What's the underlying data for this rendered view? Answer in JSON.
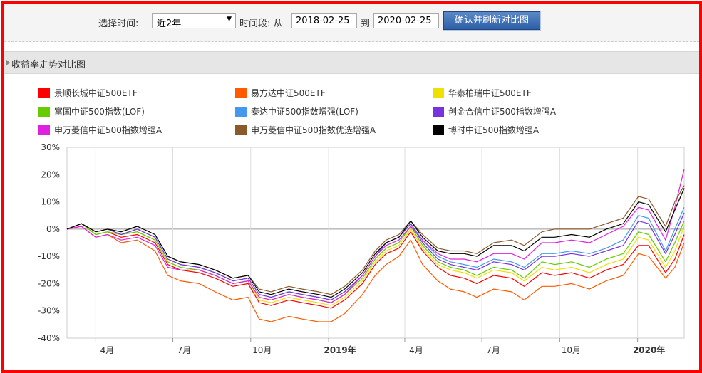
{
  "toolbar": {
    "period_label": "选择时间:",
    "period_value": "近2年",
    "range_label": "时间段: 从",
    "start_date": "2018-02-25",
    "to_label": "到",
    "end_date": "2020-02-25",
    "confirm_button": "确认并刷新对比图"
  },
  "section_title": "收益率走势对比图",
  "colors": {
    "frame": "#ff0000",
    "button": "#2c5fa7"
  },
  "chart_data": {
    "type": "line",
    "ylabel": "",
    "yticks": [
      "30%",
      "20%",
      "10%",
      "0%",
      "-10%",
      "-20%",
      "-30%",
      "-40%"
    ],
    "ylim": [
      -40,
      30
    ],
    "xticks": [
      "4月",
      "7月",
      "10月",
      "2019年",
      "4月",
      "7月",
      "10月",
      "2020年"
    ],
    "xtick_bold": [
      false,
      false,
      false,
      true,
      false,
      false,
      false,
      true
    ],
    "x_dates": [
      "2018-02-26",
      "2018-03-15",
      "2018-04-01",
      "2018-04-15",
      "2018-05-01",
      "2018-05-20",
      "2018-06-10",
      "2018-06-25",
      "2018-07-10",
      "2018-08-01",
      "2018-08-20",
      "2018-09-10",
      "2018-09-28",
      "2018-10-11",
      "2018-10-25",
      "2018-11-15",
      "2018-12-01",
      "2018-12-20",
      "2019-01-04",
      "2019-01-20",
      "2019-02-10",
      "2019-02-25",
      "2019-03-10",
      "2019-03-25",
      "2019-04-08",
      "2019-04-22",
      "2019-05-10",
      "2019-05-25",
      "2019-06-10",
      "2019-06-25",
      "2019-07-15",
      "2019-08-05",
      "2019-08-20",
      "2019-09-10",
      "2019-09-25",
      "2019-10-15",
      "2019-11-05",
      "2019-11-25",
      "2019-12-15",
      "2020-01-02",
      "2020-01-14",
      "2020-02-03",
      "2020-02-14",
      "2020-02-25"
    ],
    "series": [
      {
        "name": "景顺长城中证500ETF",
        "color": "#ff0000",
        "values": [
          0,
          2,
          -2,
          -1,
          -3,
          -2,
          -5,
          -13,
          -15,
          -16,
          -18,
          -21,
          -20,
          -27,
          -28,
          -26,
          -27,
          -28,
          -29,
          -26,
          -20,
          -13,
          -9,
          -7,
          -1,
          -8,
          -14,
          -17,
          -18,
          -20,
          -17,
          -18,
          -21,
          -16,
          -17,
          -16,
          -18,
          -15,
          -13,
          -6,
          -6,
          -16,
          -11,
          -2
        ]
      },
      {
        "name": "易方达中证500ETF",
        "color": "#ff5a00",
        "values": [
          0,
          1,
          -3,
          -2,
          -5,
          -4,
          -8,
          -17,
          -19,
          -20,
          -23,
          -26,
          -25,
          -33,
          -34,
          -32,
          -33,
          -34,
          -34,
          -31,
          -24,
          -17,
          -13,
          -10,
          -4,
          -13,
          -19,
          -22,
          -23,
          -25,
          -22,
          -23,
          -26,
          -21,
          -21,
          -20,
          -22,
          -19,
          -17,
          -9,
          -10,
          -18,
          -14,
          -5
        ]
      },
      {
        "name": "华泰柏瑞中证500ETF",
        "color": "#f0e000",
        "values": [
          0,
          2,
          -2,
          -1,
          -2,
          -1,
          -4,
          -12,
          -14,
          -15,
          -17,
          -20,
          -19,
          -26,
          -27,
          -25,
          -26,
          -27,
          -28,
          -25,
          -19,
          -12,
          -8,
          -6,
          0,
          -7,
          -13,
          -15,
          -16,
          -18,
          -15,
          -16,
          -19,
          -14,
          -15,
          -14,
          -16,
          -13,
          -11,
          -3,
          -4,
          -14,
          -8,
          1
        ]
      },
      {
        "name": "富国中证500指数(LOF)",
        "color": "#66cc00",
        "values": [
          0,
          2,
          -2,
          -1,
          -2,
          -1,
          -4,
          -12,
          -14,
          -15,
          -17,
          -20,
          -19,
          -25,
          -26,
          -24,
          -25,
          -26,
          -27,
          -24,
          -18,
          -11,
          -7,
          -5,
          1,
          -6,
          -12,
          -14,
          -15,
          -17,
          -14,
          -15,
          -18,
          -12,
          -13,
          -12,
          -14,
          -11,
          -9,
          -1,
          -2,
          -12,
          -5,
          3
        ]
      },
      {
        "name": "泰达中证500指数增强(LOF)",
        "color": "#4499ee",
        "values": [
          0,
          2,
          -1,
          0,
          -2,
          0,
          -3,
          -11,
          -13,
          -14,
          -16,
          -19,
          -18,
          -24,
          -25,
          -23,
          -24,
          -25,
          -26,
          -23,
          -17,
          -10,
          -5,
          -3,
          2,
          -4,
          -10,
          -12,
          -13,
          -14,
          -11,
          -12,
          -14,
          -9,
          -9,
          -8,
          -9,
          -7,
          -4,
          5,
          4,
          -8,
          0,
          8
        ]
      },
      {
        "name": "创金合信中证500指数增强A",
        "color": "#7733dd",
        "values": [
          0,
          2,
          -1,
          0,
          -2,
          0,
          -3,
          -11,
          -13,
          -14,
          -16,
          -19,
          -18,
          -24,
          -25,
          -23,
          -24,
          -25,
          -26,
          -23,
          -17,
          -10,
          -5,
          -3,
          2,
          -5,
          -11,
          -13,
          -14,
          -15,
          -12,
          -13,
          -15,
          -10,
          -10,
          -9,
          -10,
          -8,
          -6,
          3,
          2,
          -9,
          -2,
          6
        ]
      },
      {
        "name": "申万菱信中证500指数增强A",
        "color": "#e020e0",
        "values": [
          0,
          1,
          -3,
          -2,
          -4,
          -3,
          -6,
          -14,
          -15,
          -15,
          -17,
          -20,
          -19,
          -25,
          -26,
          -24,
          -25,
          -26,
          -27,
          -24,
          -17,
          -10,
          -6,
          -4,
          1,
          -4,
          -9,
          -11,
          -11,
          -12,
          -9,
          -9,
          -11,
          -5,
          -5,
          -4,
          -5,
          -2,
          1,
          8,
          7,
          -4,
          8,
          22
        ]
      },
      {
        "name": "申万菱信中证500指数优选增强A",
        "color": "#8b5a2b",
        "values": [
          0,
          2,
          -1,
          0,
          -1,
          1,
          -2,
          -10,
          -12,
          -13,
          -15,
          -18,
          -17,
          -22,
          -23,
          -21,
          -22,
          -23,
          -24,
          -21,
          -15,
          -8,
          -4,
          -2,
          3,
          -2,
          -7,
          -8,
          -8,
          -9,
          -5,
          -4,
          -6,
          -1,
          0,
          0,
          0,
          2,
          4,
          12,
          11,
          1,
          10,
          16
        ]
      },
      {
        "name": "博时中证500指数增强A",
        "color": "#000000",
        "values": [
          0,
          2,
          -1,
          0,
          -1,
          1,
          -2,
          -10,
          -12,
          -13,
          -15,
          -18,
          -17,
          -23,
          -24,
          -22,
          -23,
          -24,
          -25,
          -22,
          -16,
          -9,
          -5,
          -3,
          3,
          -3,
          -8,
          -9,
          -9,
          -10,
          -6,
          -6,
          -8,
          -3,
          -3,
          -2,
          -3,
          0,
          2,
          10,
          9,
          -1,
          7,
          15
        ]
      }
    ]
  }
}
